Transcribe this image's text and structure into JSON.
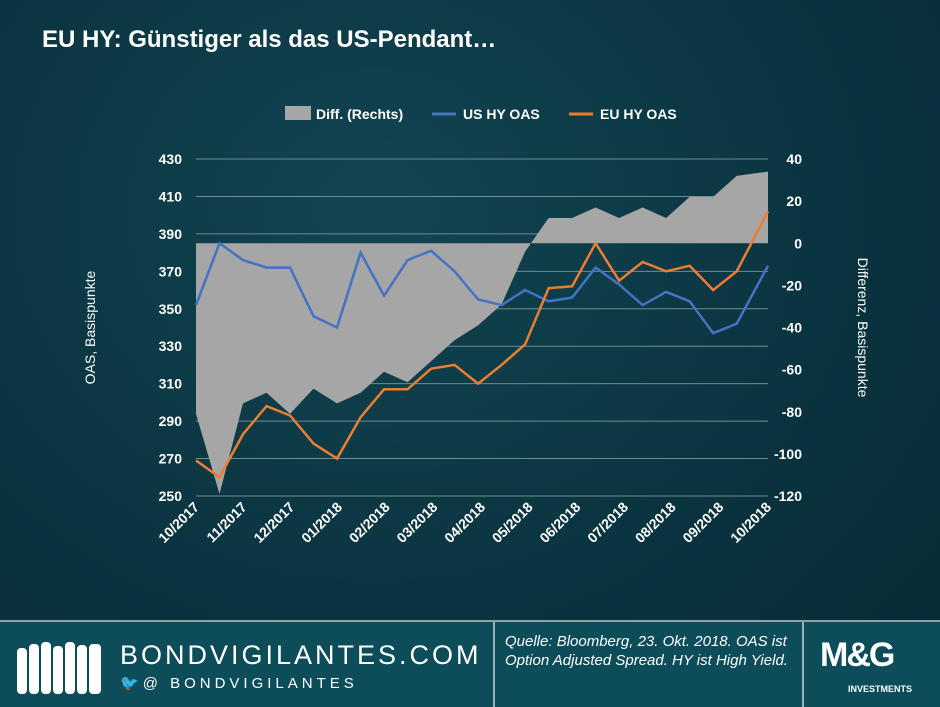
{
  "title": "EU HY: Günstiger als das US-Pendant…",
  "footer": {
    "site": "BONDVIGILANTES.COM",
    "handle": "@ BONDVIGILANTES",
    "source": "Quelle: Bloomberg, 23. Okt. 2018. OAS ist Option Adjusted Spread. HY ist High Yield.",
    "logo": "M&G",
    "logo_sub": "INVESTMENTS"
  },
  "chart_data": {
    "type": "line",
    "title": "",
    "ylabel": "OAS, Basispunkte",
    "y2label": "Differenz, Basispunkte",
    "ylim": [
      250,
      430
    ],
    "yticks": [
      250,
      270,
      290,
      310,
      330,
      350,
      370,
      390,
      410,
      430
    ],
    "y2lim": [
      -120,
      40
    ],
    "y2ticks": [
      -120,
      -100,
      -80,
      -60,
      -40,
      -20,
      0,
      20,
      40
    ],
    "xticks": [
      "10/2017",
      "11/2017",
      "12/2017",
      "01/2018",
      "02/2018",
      "03/2018",
      "04/2018",
      "05/2018",
      "06/2018",
      "07/2018",
      "08/2018",
      "09/2018",
      "10/2018"
    ],
    "legend": "top",
    "grid": true,
    "colors": {
      "diff": "#a6a6a6",
      "us": "#4472c4",
      "eu": "#ed7d31"
    },
    "x": [
      "2017-10-23",
      "2017-11-07",
      "2017-11-22",
      "2017-12-07",
      "2017-12-22",
      "2018-01-06",
      "2018-01-21",
      "2018-02-05",
      "2018-02-20",
      "2018-03-07",
      "2018-03-22",
      "2018-04-06",
      "2018-04-21",
      "2018-05-06",
      "2018-05-21",
      "2018-06-05",
      "2018-06-20",
      "2018-07-05",
      "2018-07-20",
      "2018-08-04",
      "2018-08-19",
      "2018-09-03",
      "2018-09-18",
      "2018-10-03",
      "2018-10-23"
    ],
    "series": [
      {
        "name": "Diff. (Rechts)",
        "type": "area",
        "axis": "right",
        "values": [
          -81,
          -119,
          -76,
          -71,
          -81,
          -69,
          -76,
          -71,
          -61,
          -66,
          -56,
          -46,
          -39,
          -29,
          -4,
          12,
          12,
          17,
          12,
          17,
          12,
          22,
          22,
          32,
          34
        ]
      },
      {
        "name": "US HY OAS",
        "type": "line",
        "axis": "left",
        "values": [
          352,
          385,
          376,
          372,
          372,
          346,
          340,
          380,
          357,
          376,
          381,
          370,
          355,
          352,
          360,
          354,
          356,
          372,
          363,
          352,
          359,
          354,
          337,
          342,
          373
        ]
      },
      {
        "name": "EU HY OAS",
        "type": "line",
        "axis": "left",
        "values": [
          269,
          260,
          283,
          298,
          293,
          278,
          270,
          292,
          307,
          307,
          318,
          320,
          310,
          320,
          331,
          361,
          362,
          385,
          365,
          375,
          370,
          373,
          360,
          370,
          402
        ]
      }
    ]
  }
}
